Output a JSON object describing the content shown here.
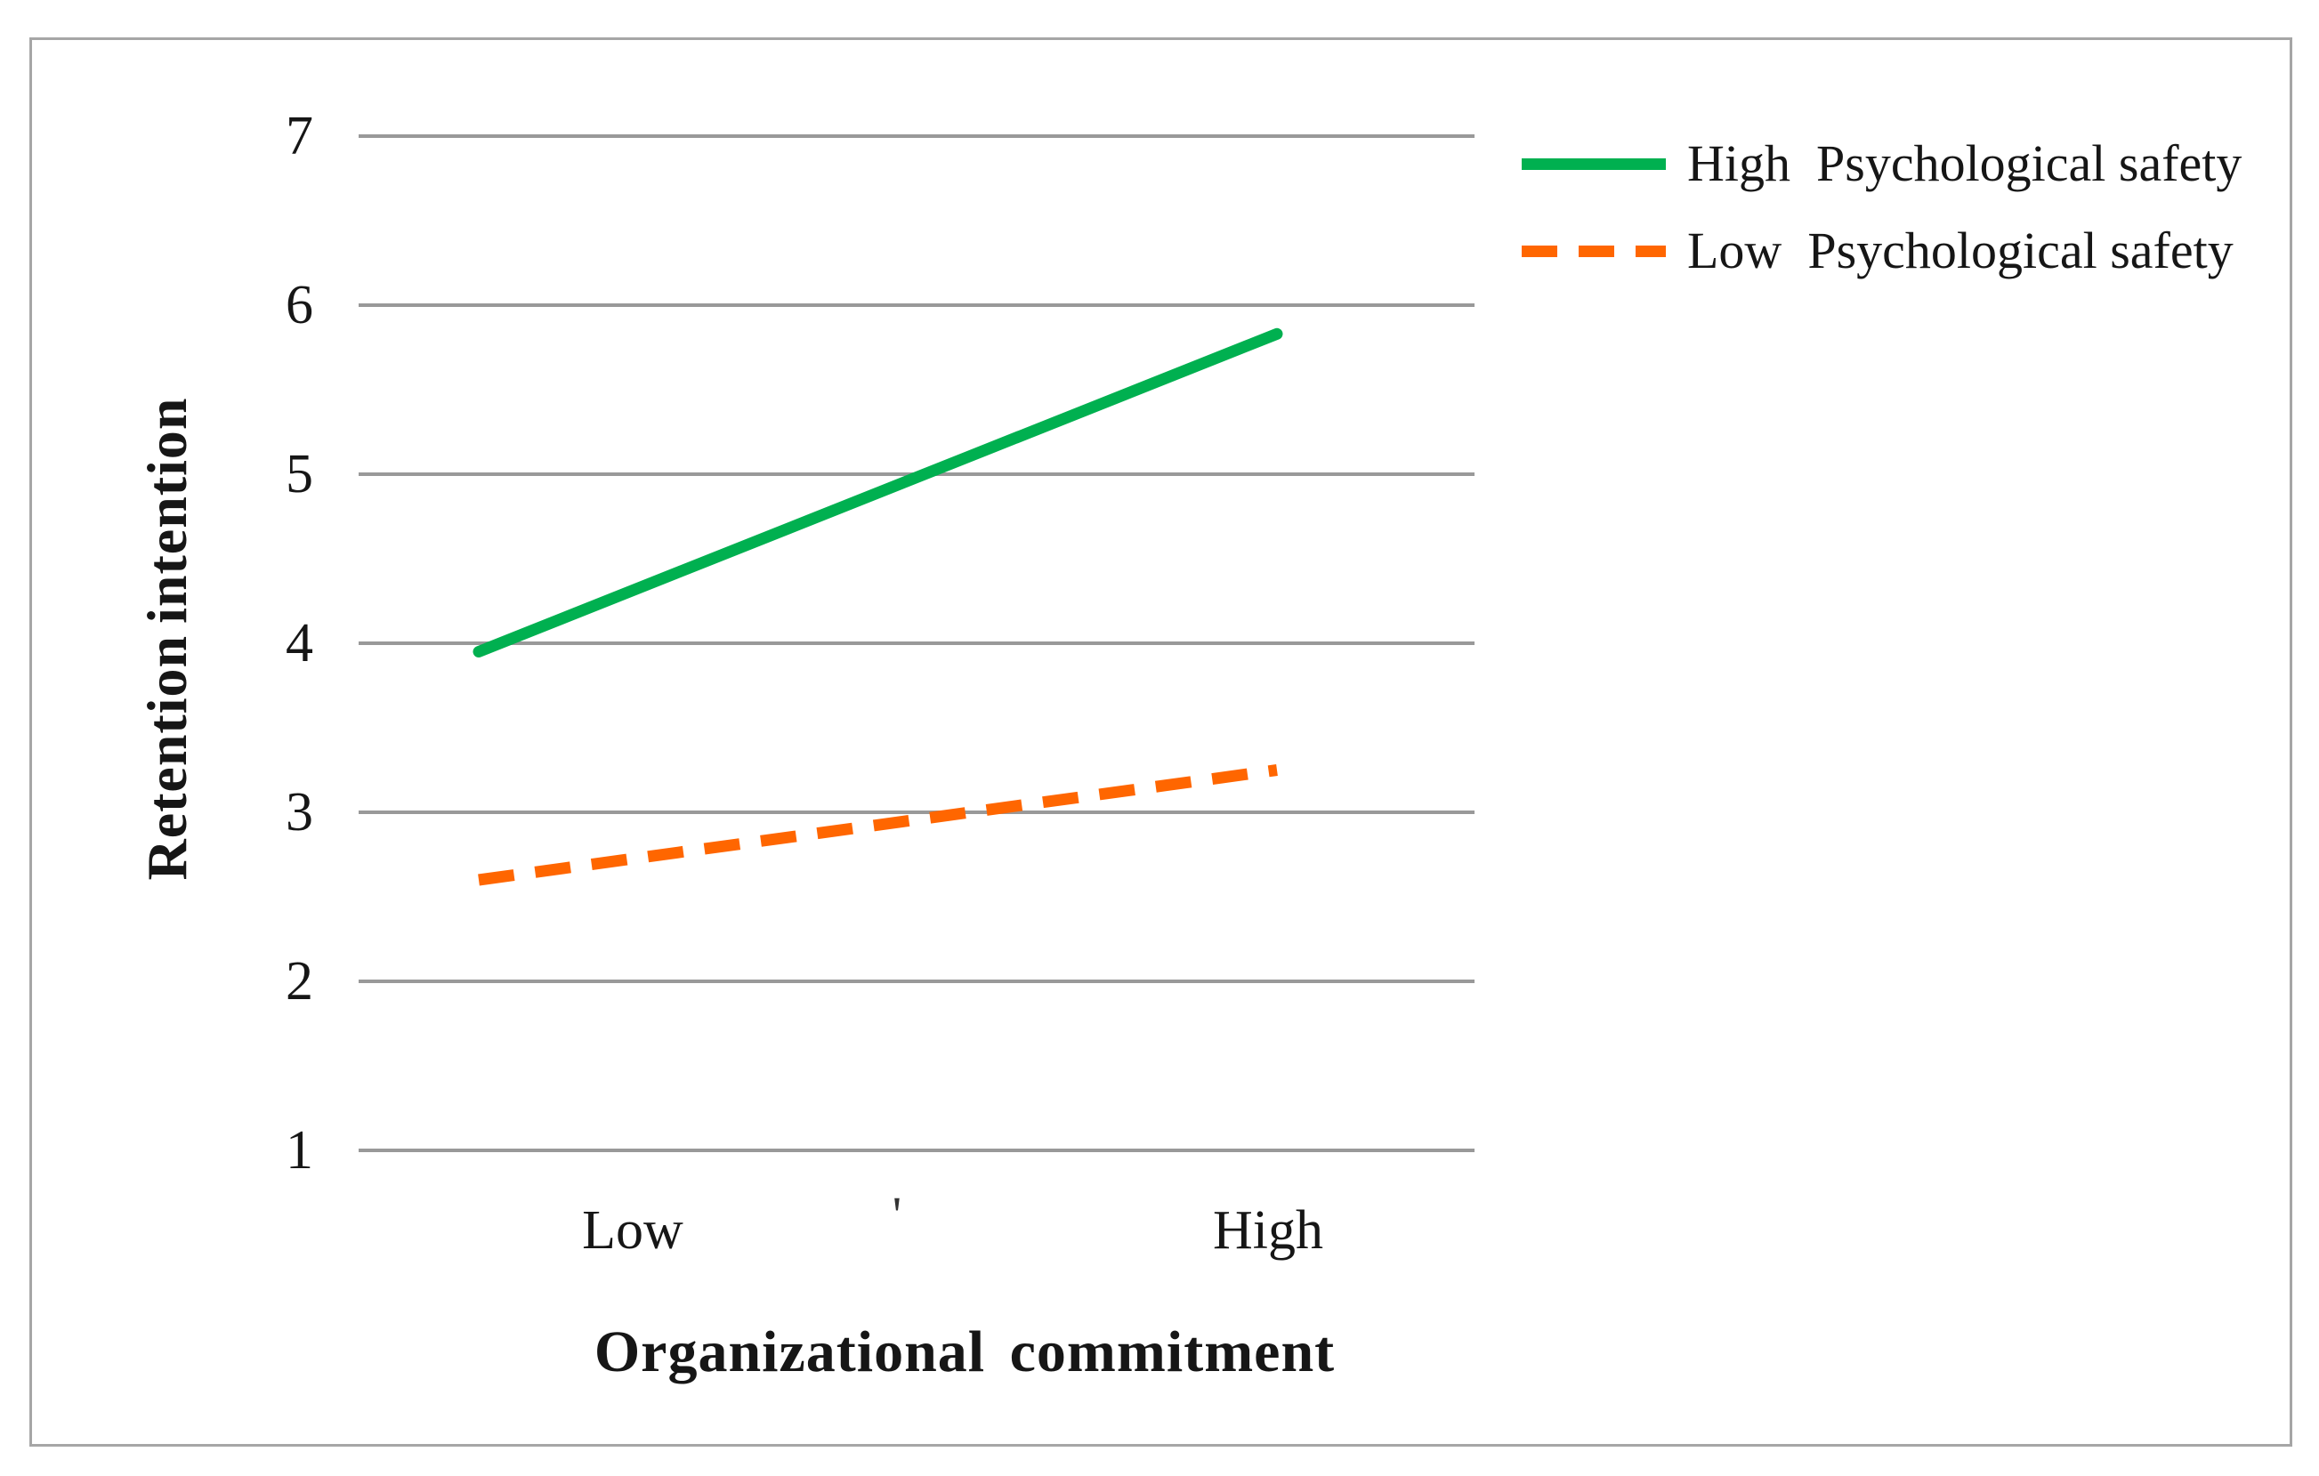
{
  "chart_data": {
    "type": "line",
    "title": "",
    "categories": [
      "Low",
      "High"
    ],
    "series": [
      {
        "name": "High Psychological safety",
        "legend_label": "High  Psychological safety",
        "values": [
          3.95,
          5.83
        ],
        "color": "#00b050",
        "line_style": "solid"
      },
      {
        "name": "Low Psychological safety",
        "legend_label": "Low  Psychological safety",
        "values": [
          2.6,
          3.25
        ],
        "color": "#ff6600",
        "line_style": "dashed"
      }
    ],
    "xlabel": "Organizational commitment",
    "ylabel": "Retention intention",
    "ylim": [
      1,
      7
    ],
    "yticks": [
      7,
      6,
      5,
      4,
      3,
      2,
      1
    ],
    "grid": "horizontal-only",
    "gridline_color": "#999999",
    "frame_border_color": "#a6a6a6",
    "legend_position": "top-right, outside plot",
    "stray_mark": "'"
  }
}
